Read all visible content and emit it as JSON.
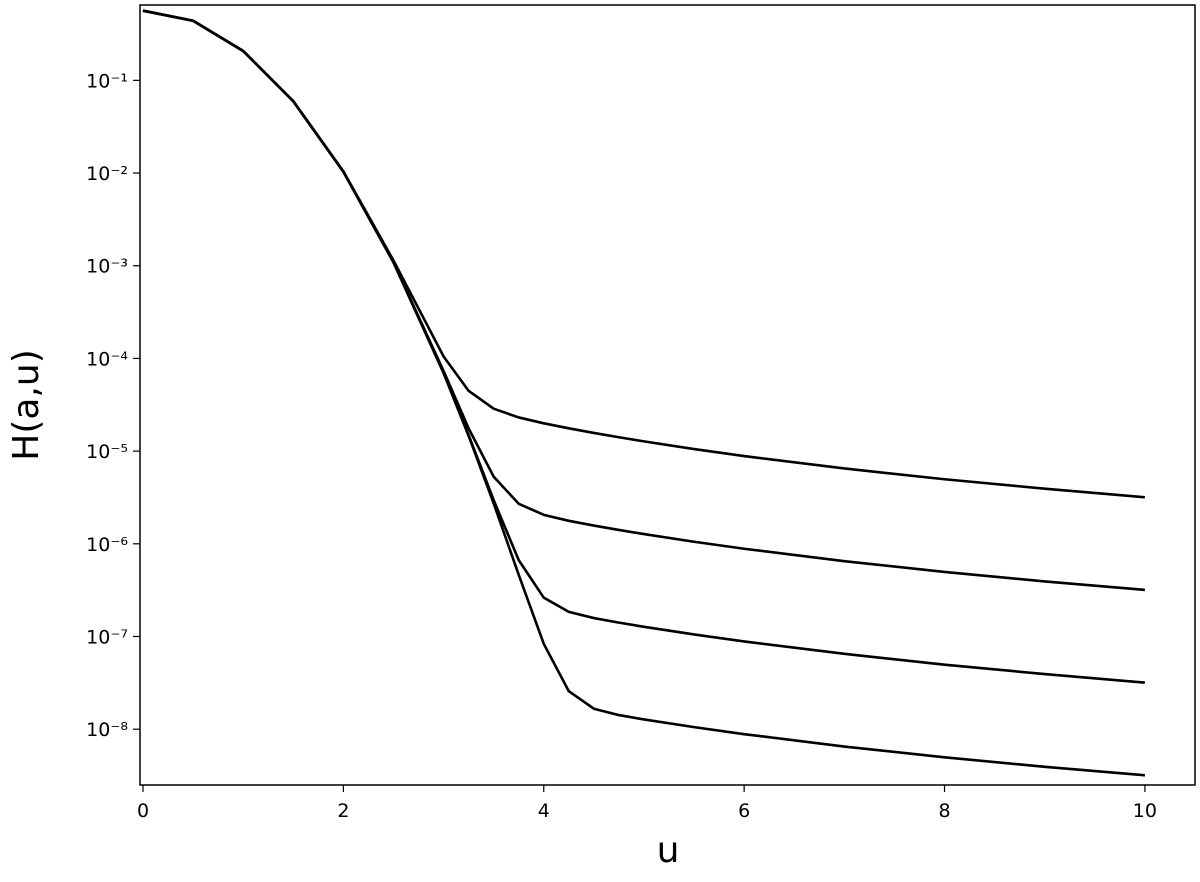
{
  "chart_data": {
    "type": "line",
    "xlabel": "u",
    "ylabel": "H(a,u)",
    "x": [
      0,
      0.5,
      1,
      1.5,
      2,
      2.5,
      3,
      3.25,
      3.5,
      3.75,
      4,
      4.25,
      4.5,
      4.75,
      5,
      5.5,
      6,
      7,
      8,
      9,
      10
    ],
    "series": [
      {
        "color": "#000000",
        "values": [
          0.5642,
          0.4394,
          0.2076,
          0.05947,
          0.01041,
          0.00114,
          0.000105,
          4.471e-05,
          2.868e-05,
          2.308e-05,
          1.995e-05,
          1.763e-05,
          1.572e-05,
          1.411e-05,
          1.273e-05,
          1.052e-05,
          8.84e-06,
          6.5e-06,
          4.97e-06,
          3.93e-06,
          3.18e-06
        ]
      },
      {
        "color": "#000000",
        "values": [
          0.5642,
          0.4394,
          0.2076,
          0.05947,
          0.010343,
          0.001094,
          7.317e-05,
          1.759e-05,
          5.298e-06,
          2.704e-06,
          2.053e-06,
          1.77e-06,
          1.573e-06,
          1.411e-06,
          1.273e-06,
          1.052e-06,
          8.84e-07,
          6.5e-07,
          4.97e-07,
          3.93e-07,
          3.18e-07
        ]
      },
      {
        "color": "#000000",
        "values": [
          0.5642,
          0.4394,
          0.2076,
          0.05947,
          0.010336,
          0.00109,
          6.998e-05,
          1.488e-05,
          2.96e-06,
          6.668e-07,
          2.624e-07,
          1.843e-07,
          1.581e-07,
          1.412e-07,
          1.273e-07,
          1.052e-07,
          8.84e-08,
          6.5e-08,
          4.97e-08,
          3.93e-08,
          3.18e-08
        ]
      },
      {
        "color": "#000000",
        "values": [
          0.5642,
          0.4394,
          0.2076,
          0.05947,
          0.010335,
          0.001089,
          6.967e-05,
          1.461e-05,
          2.726e-06,
          4.63e-07,
          8.338e-08,
          2.569e-08,
          1.663e-08,
          1.42e-08,
          1.274e-08,
          1.052e-08,
          8.84e-09,
          6.5e-09,
          4.97e-09,
          3.93e-09,
          3.18e-09
        ]
      }
    ],
    "xlim": [
      -0.03,
      10.5
    ],
    "xticks": [
      0,
      2,
      4,
      6,
      8,
      10
    ],
    "ylim": [
      2.5e-09,
      0.65
    ],
    "ylog": true,
    "yticks": [
      {
        "value": 0.1,
        "label": "10⁻¹"
      },
      {
        "value": 0.01,
        "label": "10⁻²"
      },
      {
        "value": 0.001,
        "label": "10⁻³"
      },
      {
        "value": 0.0001,
        "label": "10⁻⁴"
      },
      {
        "value": 1e-05,
        "label": "10⁻⁵"
      },
      {
        "value": 1e-06,
        "label": "10⁻⁶"
      },
      {
        "value": 1e-07,
        "label": "10⁻⁷"
      },
      {
        "value": 1e-08,
        "label": "10⁻⁸"
      }
    ],
    "grid": false
  }
}
